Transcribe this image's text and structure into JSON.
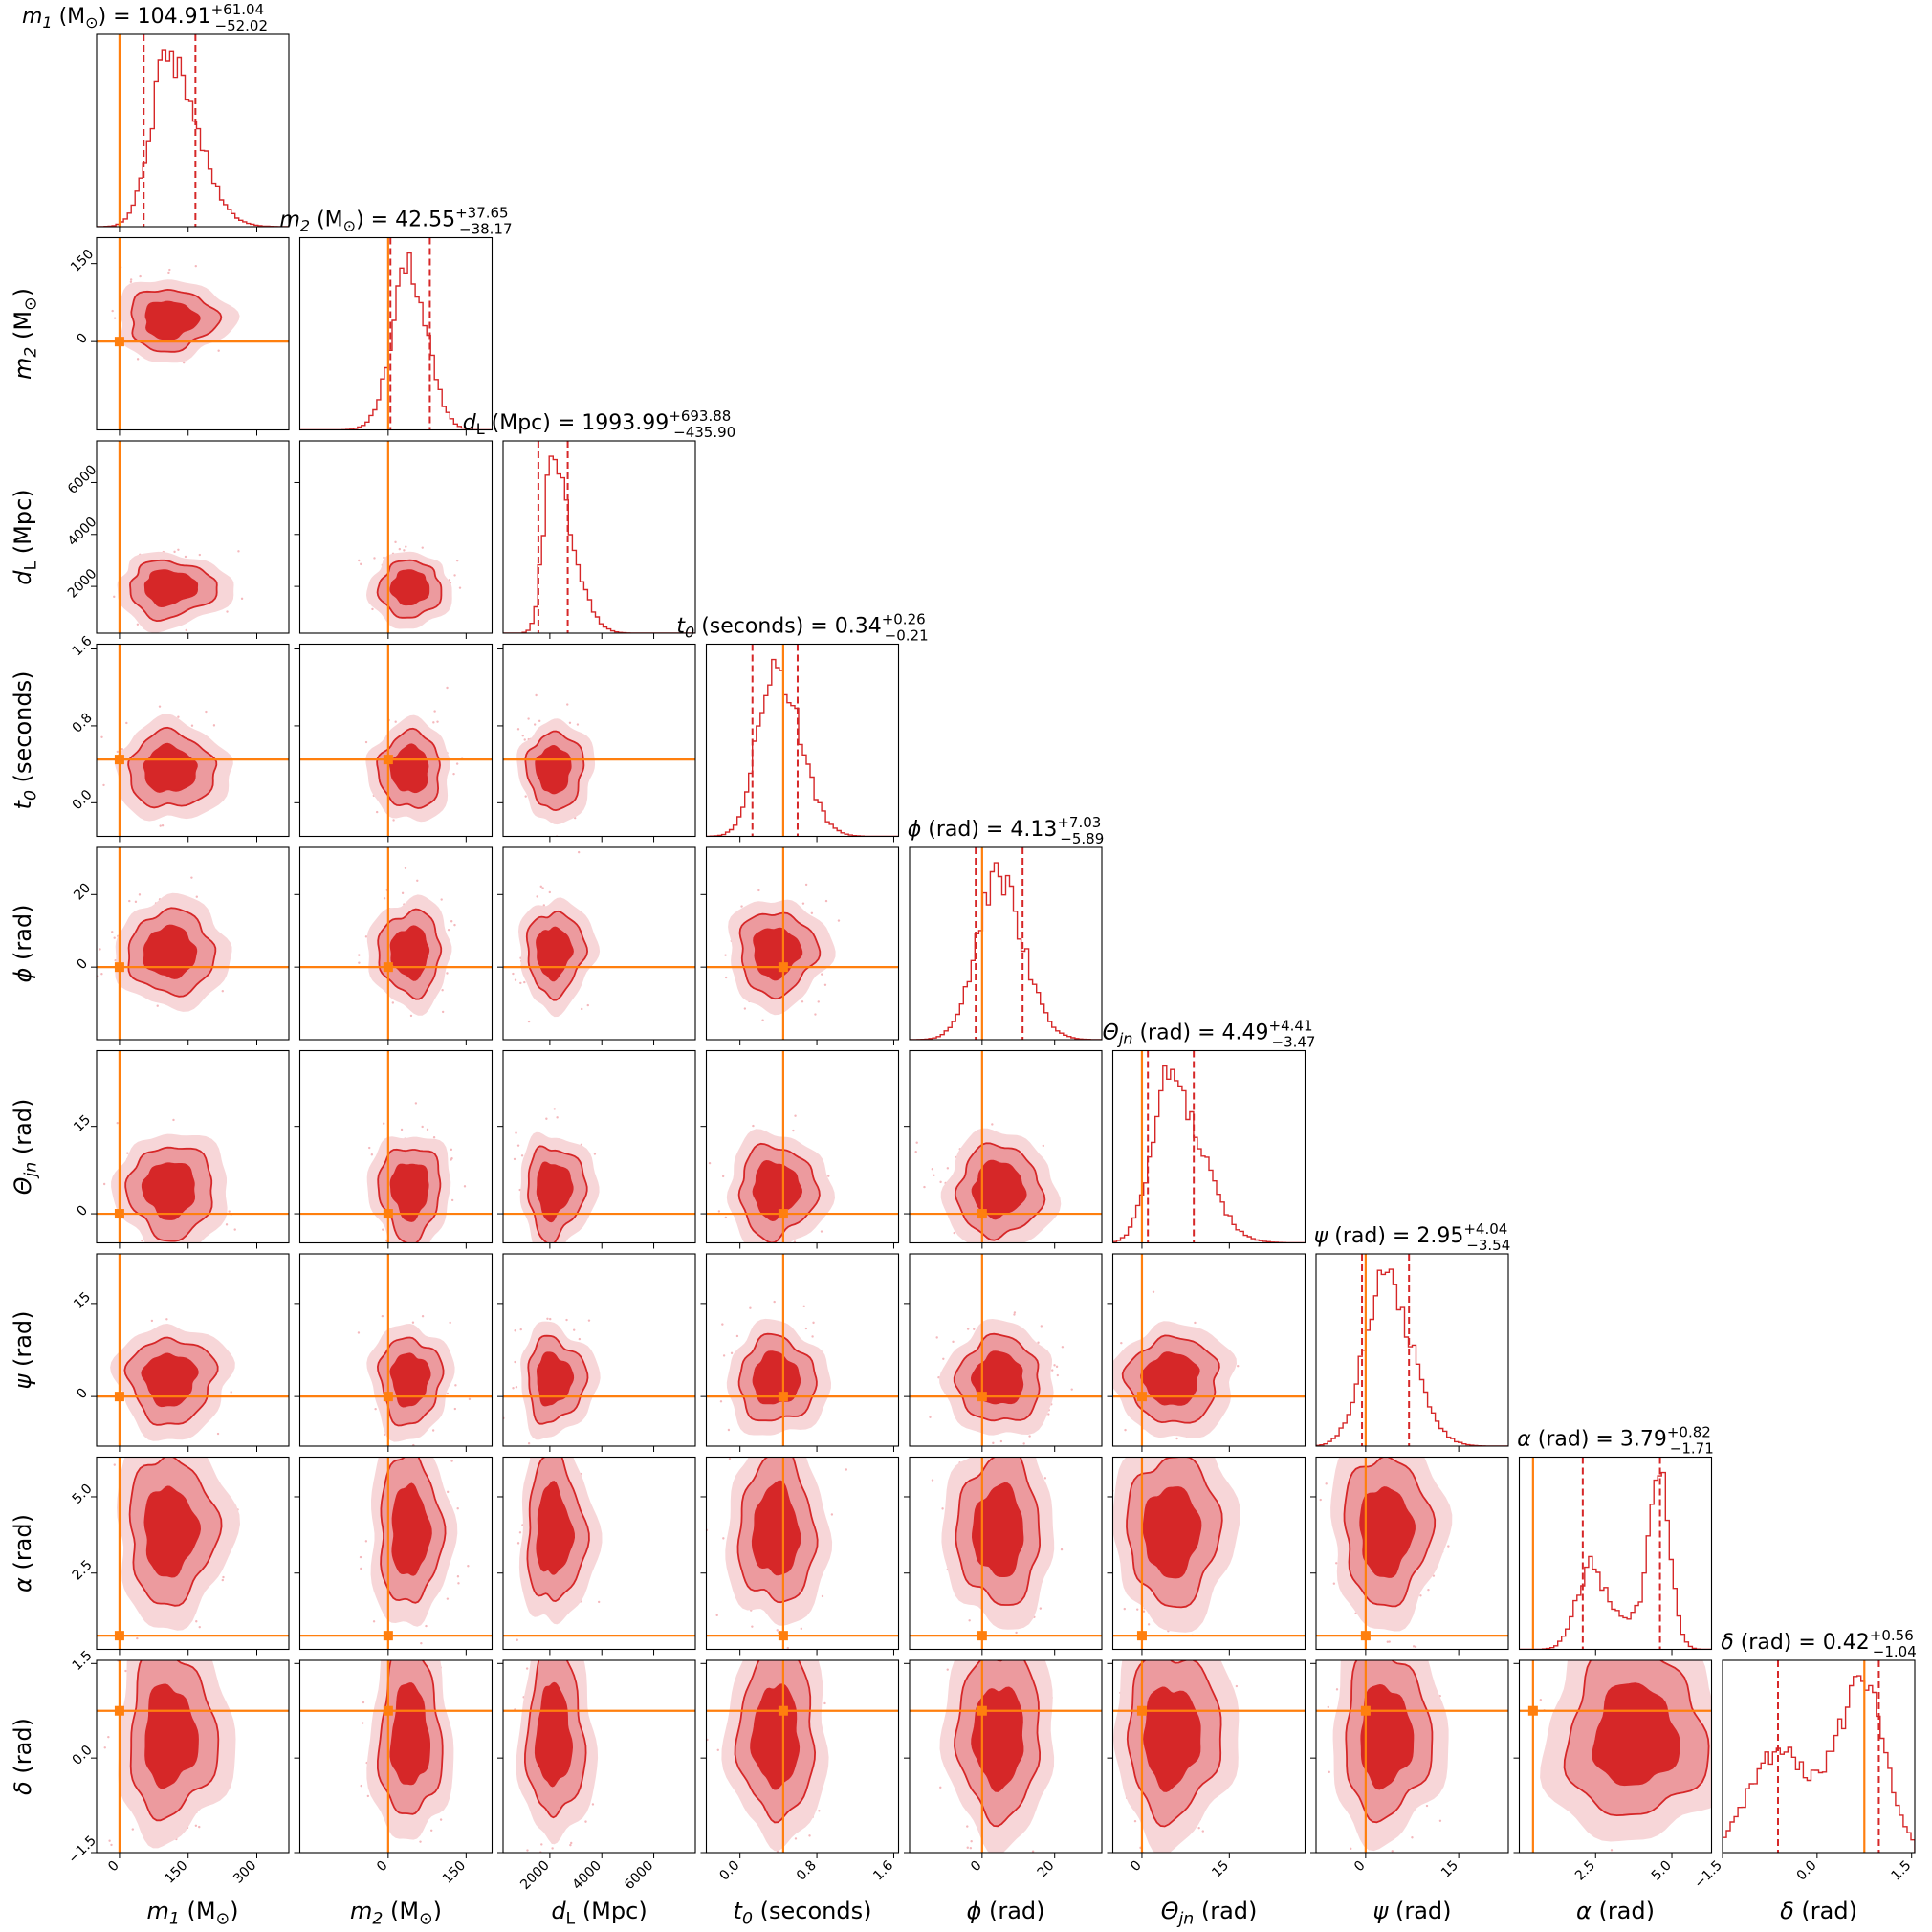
{
  "chart_data": {
    "type": "corner",
    "parameters": [
      {
        "key": "m1",
        "sym": "m",
        "sub": "1",
        "unit": "(M",
        "unit_sub": "⊙",
        "unit_end": ")",
        "label": "m1 (M⊙)",
        "title_value": "104.91",
        "title_plus": "+61.04",
        "title_minus": "−52.02",
        "range": [
          -50,
          370
        ],
        "ticks": [
          0,
          150,
          300
        ],
        "tick_labels": [
          "0",
          "150",
          "300"
        ],
        "truth": 0,
        "median": 104.91,
        "err_plus": 61.04,
        "err_minus": 52.02,
        "mean": 105,
        "sd": 48,
        "skew": 0.9
      },
      {
        "key": "m2",
        "sym": "m",
        "sub": "2",
        "unit": "(M",
        "unit_sub": "⊙",
        "unit_end": ")",
        "label": "m2 (M⊙)",
        "title_value": "42.55",
        "title_plus": "+37.65",
        "title_minus": "−38.17",
        "range": [
          -170,
          200
        ],
        "ticks": [
          0,
          150
        ],
        "tick_labels": [
          "0",
          "150"
        ],
        "truth": 0,
        "median": 42.55,
        "err_plus": 37.65,
        "err_minus": 38.17,
        "mean": 42,
        "sd": 34,
        "skew": 0
      },
      {
        "key": "dL",
        "sym": "d",
        "sub": "L",
        "unit": "(Mpc)",
        "label": "dL (Mpc)",
        "title_value": "1993.99",
        "title_plus": "+693.88",
        "title_minus": "−435.90",
        "range": [
          200,
          7600
        ],
        "ticks": [
          2000,
          4000,
          6000
        ],
        "tick_labels": [
          "2000",
          "4000",
          "6000"
        ],
        "truth": null,
        "median": 1993.99,
        "err_plus": 693.88,
        "err_minus": 435.9,
        "mean": 2050,
        "sd": 520,
        "skew": 1.6
      },
      {
        "key": "t0",
        "sym": "t",
        "sub": "0",
        "unit": "(seconds)",
        "label": "t0 (seconds)",
        "title_value": "0.34",
        "title_plus": "+0.26",
        "title_minus": "−0.21",
        "range": [
          -0.35,
          1.65
        ],
        "ticks": [
          0.0,
          0.8,
          1.6
        ],
        "tick_labels": [
          "0.0",
          "0.8",
          "1.6"
        ],
        "truth": 0.45,
        "median": 0.34,
        "err_plus": 0.26,
        "err_minus": 0.21,
        "mean": 0.36,
        "sd": 0.21,
        "skew": 0.6
      },
      {
        "key": "phi",
        "sym": "ϕ",
        "sub": "",
        "unit": "(rad)",
        "label": "ϕ (rad)",
        "title_value": "4.13",
        "title_plus": "+7.03",
        "title_minus": "−5.89",
        "range": [
          -20,
          33
        ],
        "ticks": [
          0,
          20
        ],
        "tick_labels": [
          "0",
          "20"
        ],
        "truth": 0,
        "median": 4.13,
        "err_plus": 7.03,
        "err_minus": 5.89,
        "mean": 4.3,
        "sd": 6.3,
        "skew": 0.3
      },
      {
        "key": "theta",
        "sym": "Θ",
        "sub": "jn",
        "unit": "(rad)",
        "label": "Θjn (rad)",
        "title_value": "4.49",
        "title_plus": "+4.41",
        "title_minus": "−3.47",
        "range": [
          -5,
          28
        ],
        "ticks": [
          0,
          15
        ],
        "tick_labels": [
          "0",
          "15"
        ],
        "truth": 0,
        "median": 4.49,
        "err_plus": 4.41,
        "err_minus": 3.47,
        "mean": 4.6,
        "sd": 4.0,
        "skew": 1.0
      },
      {
        "key": "psi",
        "sym": "ψ",
        "sub": "",
        "unit": "(rad)",
        "label": "ψ (rad)",
        "title_value": "2.95",
        "title_plus": "+4.04",
        "title_minus": "−3.54",
        "range": [
          -8,
          23
        ],
        "ticks": [
          0,
          15
        ],
        "tick_labels": [
          "0",
          "15"
        ],
        "truth": 0,
        "median": 2.95,
        "err_plus": 4.04,
        "err_minus": 3.54,
        "mean": 3.0,
        "sd": 3.7,
        "skew": 0.5
      },
      {
        "key": "alpha",
        "sym": "α",
        "sub": "",
        "unit": "(rad)",
        "label": "α (rad)",
        "title_value": "3.79",
        "title_plus": "+0.82",
        "title_minus": "−1.71",
        "range": [
          0,
          6.3
        ],
        "ticks": [
          2.5,
          5.0
        ],
        "tick_labels": [
          "2.5",
          "5.0"
        ],
        "truth": 0.45,
        "median": 3.79,
        "err_plus": 0.82,
        "err_minus": 1.71,
        "mean": 3.8,
        "sd": 1.3,
        "skew": -0.5
      },
      {
        "key": "delta",
        "sym": "δ",
        "sub": "",
        "unit": "(rad)",
        "label": "δ (rad)",
        "title_value": "0.42",
        "title_plus": "+0.56",
        "title_minus": "−1.04",
        "range": [
          -1.5,
          1.55
        ],
        "ticks": [
          -1.5,
          0.0,
          1.5
        ],
        "tick_labels": [
          "−1.5",
          "0.0",
          "1.5"
        ],
        "truth": 0.75,
        "median": 0.42,
        "err_plus": 0.56,
        "err_minus": 1.04,
        "mean": 0.3,
        "sd": 0.7,
        "skew": -0.6
      }
    ],
    "truth_marker_color": "#ff7f0e",
    "contour_color": "#d62728",
    "contour_fill_inner": "#d62728",
    "contour_fill_outer": "#ec9a9e",
    "contour_fill_outermost": "#f7d6d8",
    "histogram_color": "#d62728",
    "grid": false
  }
}
